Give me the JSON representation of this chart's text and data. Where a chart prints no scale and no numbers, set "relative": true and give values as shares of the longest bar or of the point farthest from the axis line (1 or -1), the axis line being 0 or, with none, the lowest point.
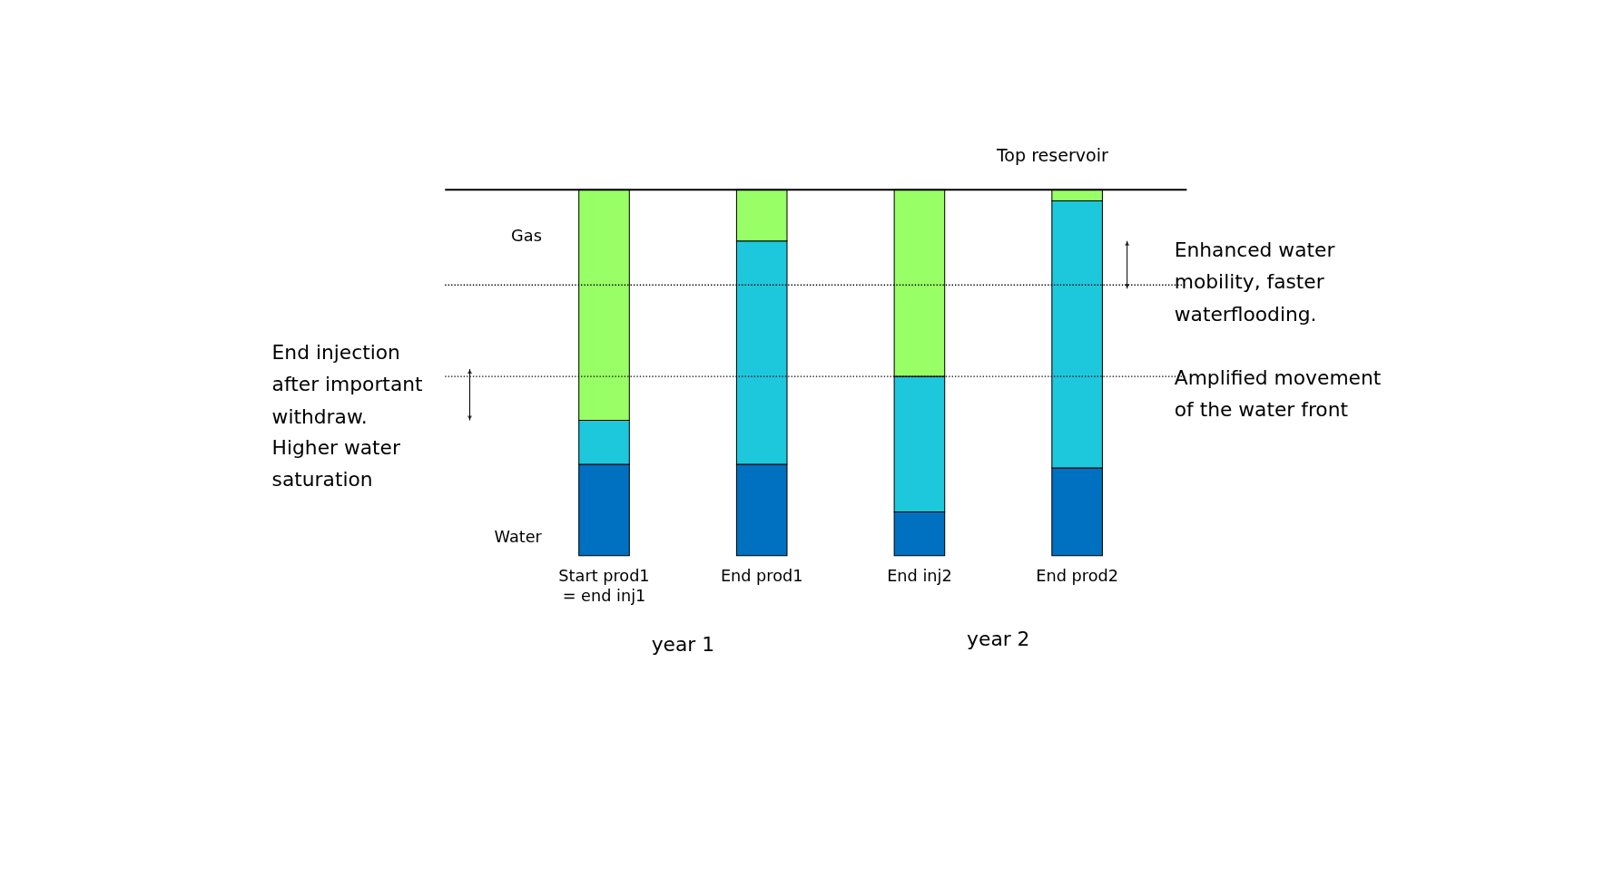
{
  "chart_data": {
    "type": "bar",
    "stacked": true,
    "relative": true,
    "legend": false,
    "categories": [
      "Start prod1 = end inj1",
      "End prod1",
      "End inj2",
      "End prod2"
    ],
    "series": [
      {
        "name": "Water",
        "color": "#0070c0",
        "values": [
          0.25,
          0.25,
          0.12,
          0.24
        ]
      },
      {
        "color": "#1ec8dc",
        "values": [
          0.12,
          0.61,
          0.37,
          0.73
        ]
      },
      {
        "name": "Gas",
        "color": "#99ff66",
        "values": [
          0.63,
          0.14,
          0.51,
          0.03
        ]
      }
    ],
    "ref_lines": [
      {
        "axis": "y",
        "value": 1,
        "label": "Top reservoir",
        "line_style": "solid"
      },
      {
        "axis": "y",
        "value": 0.49,
        "line_style": "dotted"
      },
      {
        "axis": "y",
        "value": 0.74,
        "line_style": "dotted"
      }
    ],
    "annotations": [
      "End injection after important withdraw.",
      "Higher water saturation",
      "Enhanced water mobility, faster waterflooding.",
      "Amplified movement of the water front",
      "year 1",
      "year 2"
    ]
  }
}
